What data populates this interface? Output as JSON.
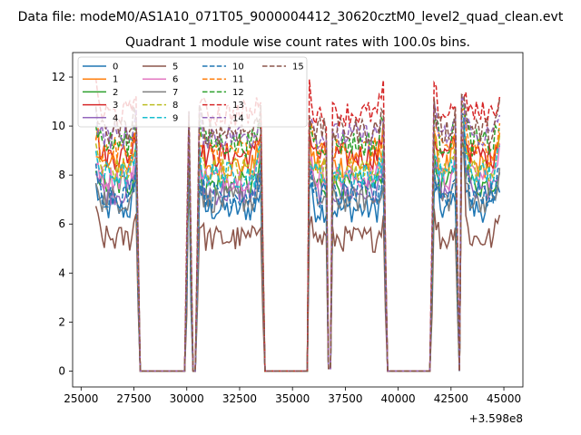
{
  "chart_data": {
    "type": "line",
    "suptitle": "Data file: modeM0/AS1A10_071T05_9000004412_30620cztM0_level2_quad_clean.evt",
    "title": "Quadrant 1 module wise count rates with 100.0s bins.",
    "xlabel": "",
    "ylabel": "",
    "x_offset_label": "+3.598e8",
    "xlim": [
      24600,
      45900
    ],
    "ylim": [
      -0.65,
      13.0
    ],
    "xticks": [
      25000,
      27500,
      30000,
      32500,
      35000,
      37500,
      40000,
      42500,
      45000
    ],
    "yticks": [
      0,
      2,
      4,
      6,
      8,
      10,
      12
    ],
    "grid": false,
    "legend": {
      "location": "top-left",
      "columns": 4
    },
    "colors": [
      "#1f77b4",
      "#ff7f0e",
      "#2ca02c",
      "#d62728",
      "#9467bd",
      "#8c564b",
      "#e377c2",
      "#7f7f7f",
      "#bcbd22",
      "#17becf",
      "#1f77b4",
      "#ff7f0e",
      "#2ca02c",
      "#d62728",
      "#9467bd",
      "#8c564b"
    ],
    "series": [
      {
        "name": "0",
        "style": "solid",
        "level": 6.6
      },
      {
        "name": "1",
        "style": "solid",
        "level": 8.4
      },
      {
        "name": "2",
        "style": "solid",
        "level": 7.6
      },
      {
        "name": "3",
        "style": "solid",
        "level": 8.8
      },
      {
        "name": "4",
        "style": "solid",
        "level": 7.3
      },
      {
        "name": "5",
        "style": "solid",
        "level": 5.4
      },
      {
        "name": "6",
        "style": "solid",
        "level": 7.9
      },
      {
        "name": "7",
        "style": "solid",
        "level": 7.0
      },
      {
        "name": "8",
        "style": "dashed",
        "level": 8.2
      },
      {
        "name": "9",
        "style": "dashed",
        "level": 8.0
      },
      {
        "name": "10",
        "style": "dashed",
        "level": 7.2
      },
      {
        "name": "11",
        "style": "dashed",
        "level": 9.0
      },
      {
        "name": "12",
        "style": "dashed",
        "level": 9.3
      },
      {
        "name": "13",
        "style": "dashed",
        "level": 10.5
      },
      {
        "name": "14",
        "style": "dashed",
        "level": 9.6
      },
      {
        "name": "15",
        "style": "dashed",
        "level": 9.8
      }
    ],
    "on_segments": [
      [
        25700,
        27600
      ],
      [
        30550,
        33500
      ],
      [
        35800,
        39300
      ],
      [
        41700,
        42750
      ],
      [
        43150,
        44800
      ]
    ],
    "off_segments": [
      [
        27800,
        29900
      ],
      [
        30250,
        30400
      ],
      [
        33700,
        35700
      ],
      [
        39500,
        41500
      ],
      [
        42900,
        43000
      ]
    ],
    "spikes": [
      {
        "x": 30100,
        "y_range": [
          9.0,
          10.6
        ]
      },
      {
        "x": 36700,
        "y_range": [
          9.5,
          11.9
        ]
      },
      {
        "x": 43050,
        "y_range": [
          9.0,
          11.3
        ]
      }
    ],
    "dips": [
      {
        "x": 36750,
        "y": 0.1
      }
    ]
  }
}
